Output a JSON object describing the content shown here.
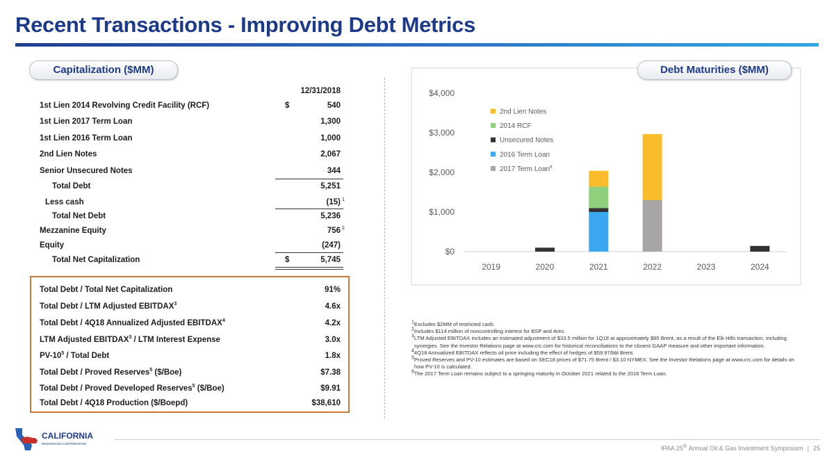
{
  "header": {
    "title": "Recent Transactions - Improving Debt Metrics"
  },
  "capitalization": {
    "heading": "Capitalization ($MM)",
    "column": "12/31/2018",
    "rows": [
      {
        "label": "1st Lien 2014 Revolving Credit Facility (RCF)",
        "currency": "$",
        "value": "540"
      },
      {
        "label": "1st Lien 2017 Term Loan",
        "value": "1,300"
      },
      {
        "label": "1st Lien 2016 Term Loan",
        "value": "1,000"
      },
      {
        "label": "2nd Lien Notes",
        "value": "2,067"
      },
      {
        "label": "Senior Unsecured Notes",
        "value": "344"
      },
      {
        "label": "Total Debt",
        "value": "5,251"
      },
      {
        "label": "Less cash",
        "value": "(15)",
        "note": "1"
      },
      {
        "label": "Total Net Debt",
        "value": "5,236"
      },
      {
        "label": "Mezzanine Equity",
        "value": "756",
        "note": "2"
      },
      {
        "label": "Equity",
        "value": "(247)"
      },
      {
        "label": "Total Net Capitalization",
        "currency": "$",
        "value": "5,745"
      }
    ]
  },
  "ratios": {
    "rows": [
      {
        "label": [
          {
            "text": "Total Debt / Total Net Capitalization"
          }
        ],
        "value": "91%"
      },
      {
        "label": [
          {
            "text": "Total Debt / LTM Adjusted EBITDAX"
          },
          {
            "sup": "3"
          }
        ],
        "value": "4.6x"
      },
      {
        "label": [
          {
            "text": "Total Debt / 4Q18 Annualized Adjusted EBITDAX"
          },
          {
            "sup": "4"
          }
        ],
        "value": "4.2x"
      },
      {
        "label": [
          {
            "text": "LTM Adjusted EBITDAX"
          },
          {
            "sup": "3"
          },
          {
            "text": " / LTM Interest Expense"
          }
        ],
        "value": "3.0x"
      },
      {
        "label": [
          {
            "text": "PV-10"
          },
          {
            "sup": "5"
          },
          {
            "text": " / Total Debt"
          }
        ],
        "value": "1.8x"
      },
      {
        "label": [
          {
            "text": "Total Debt / Proved Reserves"
          },
          {
            "sup": "5"
          },
          {
            "text": " ($/Boe)"
          }
        ],
        "value": "$7.38"
      },
      {
        "label": [
          {
            "text": "Total Debt / Proved Developed Reserves"
          },
          {
            "sup": "5"
          },
          {
            "text": " ($/Boe)"
          }
        ],
        "value": "$9.91"
      },
      {
        "label": [
          {
            "text": "Total Debt / 4Q18 Production ($/Boepd)"
          }
        ],
        "value": "$38,610"
      }
    ]
  },
  "chart_data": {
    "type": "stacked_bar",
    "title": "Debt Maturities ($MM)",
    "categories": [
      "2019",
      "2020",
      "2021",
      "2022",
      "2023",
      "2024"
    ],
    "series": [
      {
        "name": "2nd Lien Notes",
        "color": "#f9bd2b",
        "values": [
          null,
          null,
          400,
          1667,
          null,
          null
        ]
      },
      {
        "name": "2014 RCF",
        "color": "#8fd07c",
        "values": [
          null,
          null,
          540,
          null,
          null,
          null
        ]
      },
      {
        "name": "Unsecured Notes",
        "color": "#333333",
        "values": [
          null,
          100,
          100,
          null,
          null,
          144
        ]
      },
      {
        "name": "2016 Term Loan",
        "color": "#3ba7f0",
        "values": [
          null,
          null,
          1000,
          null,
          null,
          null
        ]
      },
      {
        "name": "2017 Term Loan",
        "note": "6",
        "color": "#a7a5a6",
        "values": [
          null,
          null,
          null,
          1300,
          null,
          null
        ]
      }
    ],
    "ylim": [
      0,
      4000
    ],
    "yticks": [
      {
        "value": 0,
        "label": "$0"
      },
      {
        "value": 1000,
        "label": "$1,000"
      },
      {
        "value": 2000,
        "label": "$2,000"
      },
      {
        "value": 3000,
        "label": "$3,000"
      },
      {
        "value": 4000,
        "label": "$4,000"
      }
    ],
    "grid": false
  },
  "footnotes": [
    {
      "number": "1",
      "text": "Excludes $2MM of restricted cash."
    },
    {
      "number": "2",
      "text": "Includes $114 million of noncontrolling interest for BSP and Ares."
    },
    {
      "number": "3",
      "text": "LTM Adjusted EBITDAX includes an estimated adjustment of $33.5 million for 1Q18 at approximately $65 Brent, as a result of the Elk Hills transaction, including synergies. See the Investor Relations page at www.crc.com for historical reconciliations to the closest GAAP measure and other important information."
    },
    {
      "number": "4",
      "text": "4Q18 Annualized EBITDAX reflects oil price including the effect of hedges of $59.97/bbl Brent."
    },
    {
      "number": "5",
      "text": "Proved Reserves and PV-10 estimates are based on SEC18 prices of $71.75 Brent / $3.10 NYMEX. See the Investor Relations page at www.crc.com for details on how PV-10 is calculated."
    },
    {
      "number": "6",
      "text": "The 2017 Term Loan remains subject to a springing maturity in October 2021 related to the 2016 Term Loan."
    }
  ],
  "logo": {
    "name": "CALIFORNIA",
    "subname": "RESOURCES CORPORATION"
  },
  "footer": {
    "event": [
      {
        "text": "IPAA 25"
      },
      {
        "sup": "th"
      },
      {
        "text": " Annual Oil & Gas Investment Symposium"
      }
    ],
    "page": "25"
  }
}
